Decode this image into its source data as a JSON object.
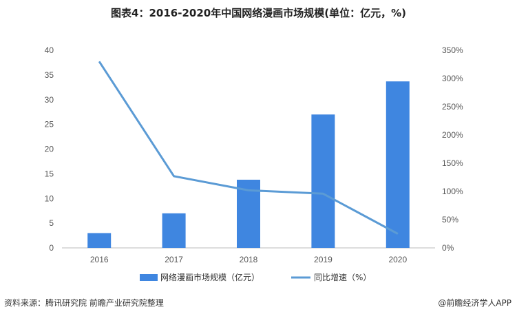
{
  "title": "图表4：2016-2020年中国网络漫画市场规模(单位：亿元，%)",
  "source": "资料来源：腾讯研究院 前瞻产业研究院整理",
  "brand": "@前瞻经济学人APP",
  "colors": {
    "bar": "#3f86e0",
    "line": "#5b9bd5",
    "axis": "#bbbbbb"
  },
  "chart_data": {
    "type": "bar",
    "categories": [
      "2016",
      "2017",
      "2018",
      "2019",
      "2020"
    ],
    "series": [
      {
        "name": "网络漫画市场规模（亿元）",
        "type": "bar",
        "axis": "left",
        "values": [
          3.0,
          7.0,
          13.8,
          27.0,
          33.7
        ]
      },
      {
        "name": "同比增速（%）",
        "type": "line",
        "axis": "right",
        "values": [
          330,
          127,
          102,
          96,
          25
        ]
      }
    ],
    "y_left": {
      "min": 0,
      "max": 40,
      "ticks": [
        0,
        5,
        10,
        15,
        20,
        25,
        30,
        35,
        40
      ]
    },
    "y_right": {
      "min": 0,
      "max": 350,
      "ticks": [
        "0%",
        "50%",
        "100%",
        "150%",
        "200%",
        "250%",
        "300%",
        "350%"
      ]
    },
    "legend_position": "bottom"
  }
}
